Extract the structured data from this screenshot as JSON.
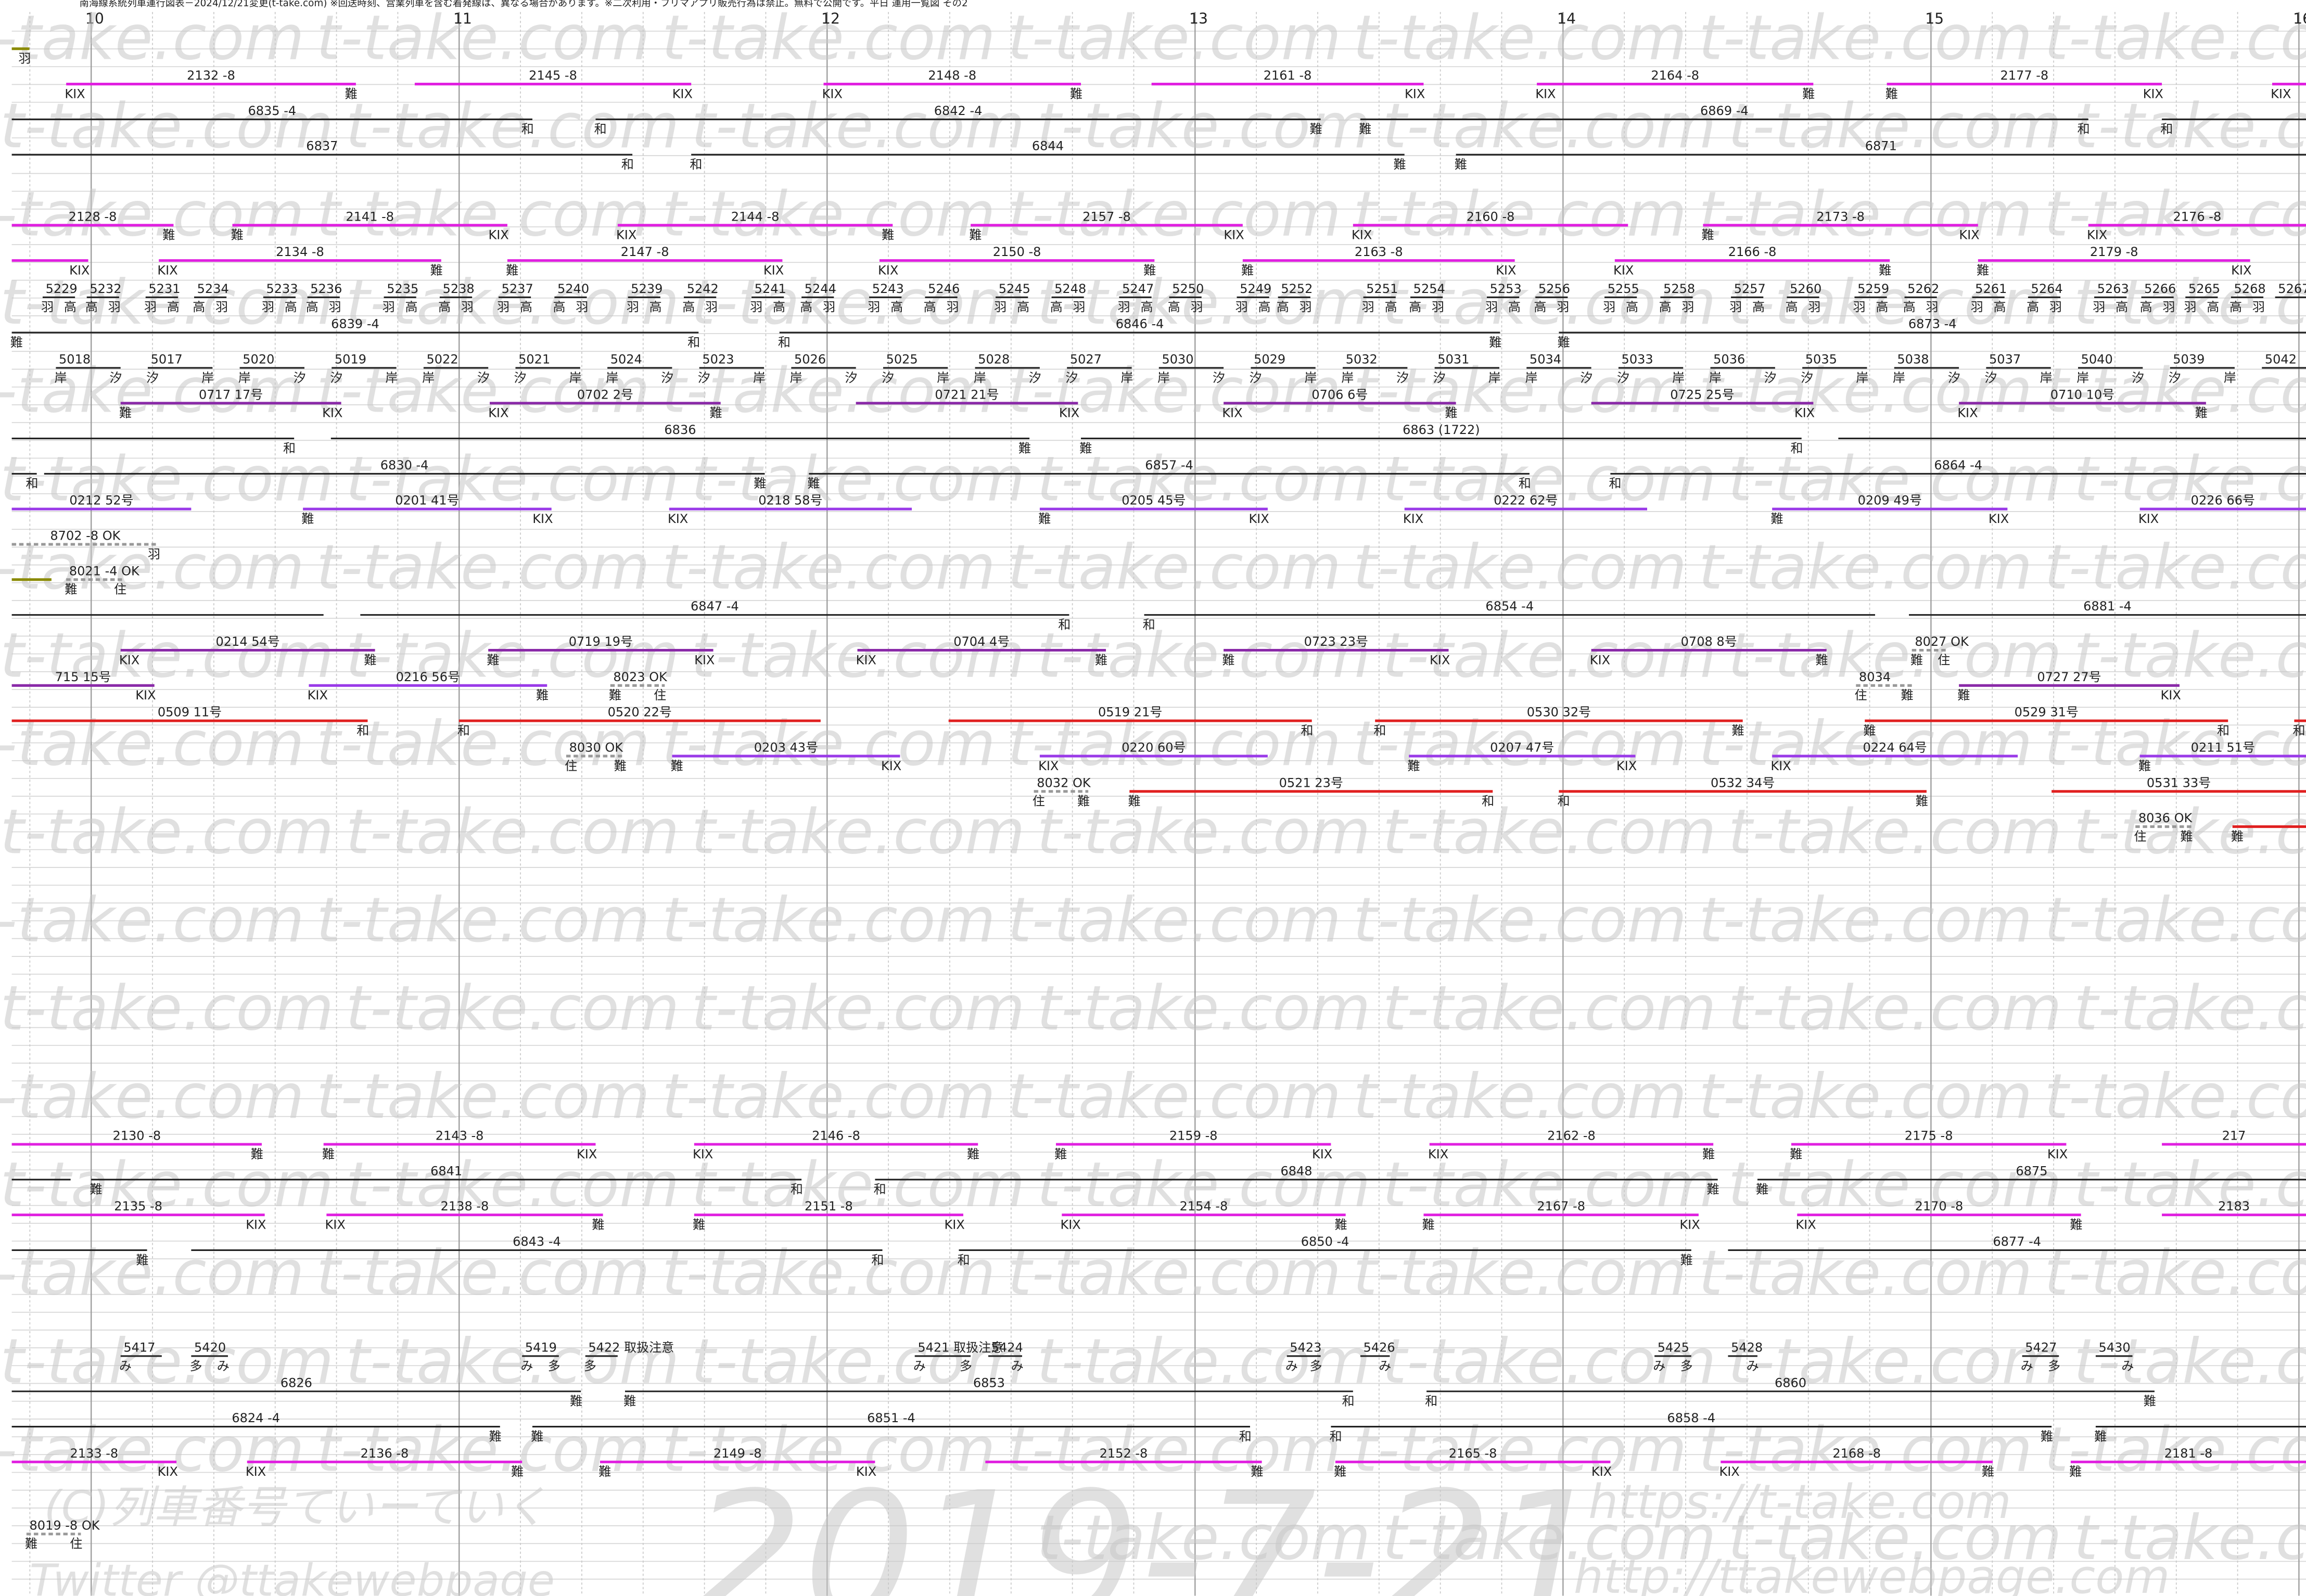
{
  "header": "南海線系統列車運行図表－2024/12/21変更(t-take.com) ※回送時刻、営業列車を含む着発線は、異なる場合があります。※二次利用・フリマアプリ販売行為は禁止。無料で公開です。平日 運用一覧図 その2",
  "hours": [
    "10",
    "11",
    "12",
    "13",
    "14",
    "15",
    "16"
  ],
  "watermarks": {
    "site": "t-take.com",
    "date": "2019-7-21",
    "copyright": "(C)列車番号ていーていく",
    "twitter": "Twitter @ttakewebpage",
    "url1": "https://t-take.com",
    "url2": "http://ttakewebpage.com"
  },
  "rows": [
    {
      "segments": [
        {
          "to": "羽"
        }
      ]
    },
    {
      "segments": [
        {
          "train": "2132 -8",
          "from": "KIX",
          "to": "難"
        },
        {
          "train": "2145 -8",
          "to": "KIX"
        },
        {
          "train": "2148 -8",
          "from": "KIX",
          "to": "難"
        },
        {
          "train": "2161 -8",
          "to": "KIX"
        },
        {
          "train": "2164 -8",
          "from": "KIX",
          "to": "難"
        },
        {
          "train": "2177 -8",
          "from": "難",
          "to": "KIX"
        },
        {
          "from": "KIX"
        }
      ]
    },
    {
      "segments": [
        {
          "train": "6835 -4",
          "to": "和"
        },
        {
          "train": "6842 -4",
          "from": "和",
          "to": "難"
        },
        {
          "train": "6869 -4",
          "from": "難",
          "to": "和"
        },
        {
          "from": "和"
        }
      ]
    },
    {
      "segments": [
        {
          "train": "6837",
          "to": "和"
        },
        {
          "train": "6844",
          "from": "和",
          "to": "難"
        },
        {
          "train": "6871",
          "from": "難"
        }
      ]
    },
    {
      "segments": [
        {
          "train": "2128 -8",
          "to": "難"
        },
        {
          "train": "2141 -8",
          "from": "難",
          "to": "KIX"
        },
        {
          "train": "2144 -8",
          "from": "KIX",
          "to": "難"
        },
        {
          "train": "2157 -8",
          "from": "難",
          "to": "KIX"
        },
        {
          "train": "2160 -8",
          "from": "KIX"
        },
        {
          "train": "2173 -8",
          "from": "難",
          "to": "KIX"
        },
        {
          "train": "2176 -8",
          "from": "KIX"
        }
      ]
    },
    {
      "segments": [
        {
          "to": "KIX"
        },
        {
          "train": "2134 -8",
          "from": "KIX",
          "to": "難"
        },
        {
          "train": "2147 -8",
          "from": "難",
          "to": "KIX"
        },
        {
          "train": "2150 -8",
          "from": "KIX",
          "to": "難"
        },
        {
          "train": "2163 -8",
          "from": "難",
          "to": "KIX"
        },
        {
          "train": "2166 -8",
          "from": "KIX",
          "to": "難"
        },
        {
          "train": "2179 -8",
          "from": "難",
          "to": "KIX"
        }
      ]
    },
    {
      "segments": [
        {
          "train": "5229",
          "from": "羽",
          "to": "高"
        },
        {
          "train": "5232",
          "from": "高",
          "to": "羽"
        },
        {
          "train": "5231",
          "from": "羽",
          "to": "高"
        },
        {
          "train": "5234",
          "from": "高",
          "to": "羽"
        },
        {
          "train": "5233",
          "from": "羽",
          "to": "高"
        },
        {
          "train": "5236",
          "from": "高",
          "to": "羽"
        },
        {
          "train": "5235",
          "from": "羽",
          "to": "高"
        },
        {
          "train": "5238",
          "from": "高",
          "to": "羽"
        },
        {
          "train": "5237",
          "from": "羽",
          "to": "高"
        },
        {
          "train": "5240",
          "from": "高",
          "to": "羽"
        },
        {
          "train": "5239",
          "from": "羽",
          "to": "高"
        },
        {
          "train": "5242",
          "from": "高",
          "to": "羽"
        },
        {
          "train": "5241",
          "from": "羽",
          "to": "高"
        },
        {
          "train": "5244",
          "from": "高",
          "to": "羽"
        },
        {
          "train": "5243",
          "from": "羽",
          "to": "高"
        },
        {
          "train": "5246",
          "from": "高",
          "to": "羽"
        },
        {
          "train": "5245",
          "from": "羽",
          "to": "高"
        },
        {
          "train": "5248",
          "from": "高",
          "to": "羽"
        },
        {
          "train": "5247",
          "from": "羽",
          "to": "高"
        },
        {
          "train": "5250",
          "from": "高",
          "to": "羽"
        },
        {
          "train": "5249",
          "from": "羽",
          "to": "高"
        },
        {
          "train": "5252",
          "from": "高",
          "to": "羽"
        },
        {
          "train": "5251",
          "from": "羽",
          "to": "高"
        },
        {
          "train": "5254",
          "from": "高",
          "to": "羽"
        },
        {
          "train": "5253",
          "from": "羽",
          "to": "高"
        },
        {
          "train": "5256",
          "from": "高",
          "to": "羽"
        },
        {
          "train": "5255",
          "from": "羽",
          "to": "高"
        },
        {
          "train": "5258",
          "from": "高",
          "to": "羽"
        },
        {
          "train": "5257",
          "from": "羽",
          "to": "高"
        },
        {
          "train": "5260",
          "from": "高",
          "to": "羽"
        },
        {
          "train": "5259",
          "from": "羽",
          "to": "高"
        },
        {
          "train": "5262",
          "from": "高",
          "to": "羽"
        },
        {
          "train": "5261",
          "from": "羽",
          "to": "高"
        },
        {
          "train": "5264",
          "from": "高",
          "to": "羽"
        },
        {
          "train": "5263",
          "from": "羽",
          "to": "高"
        },
        {
          "train": "5266",
          "from": "高",
          "to": "羽"
        },
        {
          "train": "5265",
          "from": "羽",
          "to": "高"
        },
        {
          "train": "5268",
          "from": "高",
          "to": "羽"
        },
        {
          "train": "5267"
        }
      ]
    },
    {
      "segments": [
        {
          "train": "6839 -4",
          "from": "難",
          "to": "和"
        },
        {
          "train": "6846 -4",
          "from": "和",
          "to": "難"
        },
        {
          "train": "6873 -4",
          "from": "難"
        }
      ]
    },
    {
      "segments": [
        {
          "train": "5018",
          "from": "岸",
          "to": "汐"
        },
        {
          "train": "5017",
          "from": "汐",
          "to": "岸"
        },
        {
          "train": "5020",
          "from": "岸",
          "to": "汐"
        },
        {
          "train": "5019",
          "from": "汐",
          "to": "岸"
        },
        {
          "train": "5022",
          "from": "岸",
          "to": "汐"
        },
        {
          "train": "5021",
          "from": "汐",
          "to": "岸"
        },
        {
          "train": "5024",
          "from": "岸",
          "to": "汐"
        },
        {
          "train": "5023",
          "from": "汐",
          "to": "岸"
        },
        {
          "train": "5026",
          "from": "岸",
          "to": "汐"
        },
        {
          "train": "5025",
          "from": "汐",
          "to": "岸"
        },
        {
          "train": "5028",
          "from": "岸",
          "to": "汐"
        },
        {
          "train": "5027",
          "from": "汐",
          "to": "岸"
        },
        {
          "train": "5030",
          "from": "岸",
          "to": "汐"
        },
        {
          "train": "5029",
          "from": "汐",
          "to": "岸"
        },
        {
          "train": "5032",
          "from": "岸",
          "to": "汐"
        },
        {
          "train": "5031",
          "from": "汐",
          "to": "岸"
        },
        {
          "train": "5034",
          "from": "岸",
          "to": "汐"
        },
        {
          "train": "5033",
          "from": "汐",
          "to": "岸"
        },
        {
          "train": "5036",
          "from": "岸",
          "to": "汐"
        },
        {
          "train": "5035",
          "from": "汐",
          "to": "岸"
        },
        {
          "train": "5038",
          "from": "岸",
          "to": "汐"
        },
        {
          "train": "5037",
          "from": "汐",
          "to": "岸"
        },
        {
          "train": "5040",
          "from": "岸",
          "to": "汐"
        },
        {
          "train": "5039",
          "from": "汐",
          "to": "岸"
        },
        {
          "train": "5042"
        }
      ]
    },
    {
      "segments": [
        {
          "train": "0717 17号",
          "from": "難",
          "to": "KIX"
        },
        {
          "train": "0702 2号",
          "from": "KIX",
          "to": "難"
        },
        {
          "train": "0721 21号",
          "to": "KIX"
        },
        {
          "train": "0706 6号",
          "from": "KIX",
          "to": "難"
        },
        {
          "train": "0725 25号",
          "to": "KIX"
        },
        {
          "train": "0710 10号",
          "from": "KIX",
          "to": "難"
        }
      ]
    },
    {
      "segments": [
        {
          "to": "和"
        },
        {
          "train": "6836",
          "to": "難"
        },
        {
          "train": "6863 (1722)",
          "from": "難",
          "to": "和"
        },
        {}
      ]
    },
    {
      "segments": [
        {
          "to": "和"
        },
        {
          "train": "6830 -4",
          "to": "難"
        },
        {
          "train": "6857 -4",
          "from": "難",
          "to": "和"
        },
        {
          "train": "6864 -4",
          "from": "和"
        }
      ]
    },
    {
      "segments": [
        {
          "train": "0212 52号"
        },
        {
          "train": "0201 41号",
          "from": "難",
          "to": "KIX"
        },
        {
          "train": "0218 58号",
          "from": "KIX"
        },
        {
          "train": "0205 45号",
          "from": "難",
          "to": "KIX"
        },
        {
          "train": "0222 62号",
          "from": "KIX"
        },
        {
          "train": "0209 49号",
          "from": "難",
          "to": "KIX"
        },
        {
          "train": "0226 66号",
          "from": "KIX"
        }
      ]
    },
    {
      "segments": [
        {
          "train": "8702 -8 OK",
          "to": "羽"
        }
      ]
    },
    {
      "segments": [
        {},
        {
          "train": "8021 -4 OK",
          "from": "難",
          "to": "住"
        }
      ]
    },
    {
      "segments": [
        {},
        {
          "train": "6847 -4",
          "to": "和"
        },
        {
          "train": "6854 -4",
          "from": "和"
        },
        {
          "train": "6881 -4"
        }
      ]
    },
    {
      "segments": [
        {
          "train": "0214 54号",
          "from": "KIX",
          "to": "難"
        },
        {
          "train": "0719 19号",
          "from": "難",
          "to": "KIX"
        },
        {
          "train": "0704 4号",
          "from": "KIX",
          "to": "難"
        },
        {
          "train": "0723 23号",
          "from": "難",
          "to": "KIX"
        },
        {
          "train": "0708 8号",
          "from": "KIX",
          "to": "難"
        },
        {
          "train": "8027 OK",
          "from": "難",
          "to": "住"
        }
      ]
    },
    {
      "segments": [
        {
          "train": "715 15号",
          "to": "KIX"
        },
        {
          "train": "0216 56号",
          "from": "KIX",
          "to": "難"
        },
        {
          "train": "8023 OK",
          "from": "難",
          "to": "住"
        },
        {
          "train": "8034",
          "from": "住",
          "to": "難"
        },
        {
          "train": "0727 27号",
          "from": "難",
          "to": "KIX"
        }
      ]
    },
    {
      "segments": [
        {
          "train": "0509 11号",
          "to": "和"
        },
        {
          "train": "0520 22号",
          "from": "和"
        },
        {
          "train": "0519 21号",
          "to": "和"
        },
        {
          "train": "0530 32号",
          "from": "和",
          "to": "難"
        },
        {
          "train": "0529 31号",
          "from": "難",
          "to": "和"
        },
        {
          "from": "和"
        }
      ]
    },
    {
      "segments": [
        {
          "train": "8030 OK",
          "from": "住",
          "to": "難"
        },
        {
          "train": "0203 43号",
          "from": "難",
          "to": "KIX"
        },
        {
          "train": "0220 60号",
          "from": "KIX"
        },
        {
          "train": "0207 47号",
          "from": "難",
          "to": "KIX"
        },
        {
          "train": "0224 64号",
          "from": "KIX"
        },
        {
          "train": "0211 51号",
          "from": "難"
        }
      ]
    },
    {
      "segments": [
        {
          "train": "8032 OK",
          "from": "住",
          "to": "難"
        },
        {
          "train": "0521 23号",
          "from": "難",
          "to": "和"
        },
        {
          "train": "0532 34号",
          "from": "和",
          "to": "難"
        },
        {
          "train": "0531 33号"
        }
      ]
    },
    {
      "segments": [
        {
          "train": "8036 OK",
          "from": "住",
          "to": "難"
        },
        {
          "from": "難"
        }
      ]
    },
    {
      "segments": [
        {
          "train": "2130 -8",
          "to": "難"
        },
        {
          "train": "2143 -8",
          "from": "難",
          "to": "KIX"
        },
        {
          "train": "2146 -8",
          "from": "KIX",
          "to": "難"
        },
        {
          "train": "2159 -8",
          "from": "難",
          "to": "KIX"
        },
        {
          "train": "2162 -8",
          "from": "KIX",
          "to": "難"
        },
        {
          "train": "2175 -8",
          "from": "難",
          "to": "KIX"
        },
        {
          "train": "217"
        }
      ]
    },
    {
      "segments": [
        {},
        {
          "train": "6841",
          "from": "難",
          "to": "和"
        },
        {
          "train": "6848",
          "from": "和",
          "to": "難"
        },
        {
          "train": "6875",
          "from": "難"
        }
      ]
    },
    {
      "segments": [
        {
          "train": "2135 -8",
          "to": "KIX"
        },
        {
          "train": "2138 -8",
          "from": "KIX",
          "to": "難"
        },
        {
          "train": "2151 -8",
          "from": "難",
          "to": "KIX"
        },
        {
          "train": "2154 -8",
          "from": "KIX",
          "to": "難"
        },
        {
          "train": "2167 -8",
          "from": "難",
          "to": "KIX"
        },
        {
          "train": "2170 -8",
          "from": "KIX",
          "to": "難"
        },
        {
          "train": "2183"
        }
      ]
    },
    {
      "segments": [
        {
          "to": "難"
        },
        {
          "train": "6843 -4",
          "to": "和"
        },
        {
          "train": "6850 -4",
          "from": "和",
          "to": "難"
        },
        {
          "train": "6877 -4"
        }
      ]
    },
    {
      "segments": [
        {
          "train": "5417",
          "from": "み"
        },
        {
          "train": "5420",
          "from": "多",
          "to": "み"
        },
        {
          "train": "5419",
          "from": "み",
          "to": "多"
        },
        {
          "train": "5422 取扱注意",
          "from": "多"
        },
        {
          "train": "5421 取扱注意",
          "from": "み",
          "to": "多"
        },
        {
          "train": "5424",
          "to": "み"
        },
        {
          "train": "5423",
          "from": "み",
          "to": "多"
        },
        {
          "train": "5426",
          "to": "み"
        },
        {
          "train": "5425",
          "from": "み",
          "to": "多"
        },
        {
          "train": "5428",
          "to": "み"
        },
        {
          "train": "5427",
          "from": "み",
          "to": "多"
        },
        {
          "train": "5430",
          "to": "み"
        }
      ]
    },
    {
      "segments": [
        {
          "train": "6826",
          "to": "難"
        },
        {
          "train": "6853",
          "from": "難",
          "to": "和"
        },
        {
          "train": "6860",
          "from": "和",
          "to": "難"
        }
      ]
    },
    {
      "segments": [
        {
          "train": "6824 -4",
          "to": "難"
        },
        {
          "train": "6851 -4",
          "from": "難",
          "to": "和"
        },
        {
          "train": "6858 -4",
          "from": "和",
          "to": "難"
        },
        {
          "from": "難"
        }
      ]
    },
    {
      "segments": [
        {
          "train": "2133 -8",
          "to": "KIX"
        },
        {
          "train": "2136 -8",
          "from": "KIX",
          "to": "難"
        },
        {
          "train": "2149 -8",
          "from": "難",
          "to": "KIX"
        },
        {
          "train": "2152 -8",
          "to": "難"
        },
        {
          "train": "2165 -8",
          "from": "難",
          "to": "KIX"
        },
        {
          "train": "2168 -8",
          "from": "KIX",
          "to": "難"
        },
        {
          "train": "2181 -8",
          "from": "難"
        }
      ]
    },
    {
      "segments": [
        {
          "train": "8019 -8 OK",
          "from": "難",
          "to": "住"
        }
      ]
    }
  ]
}
